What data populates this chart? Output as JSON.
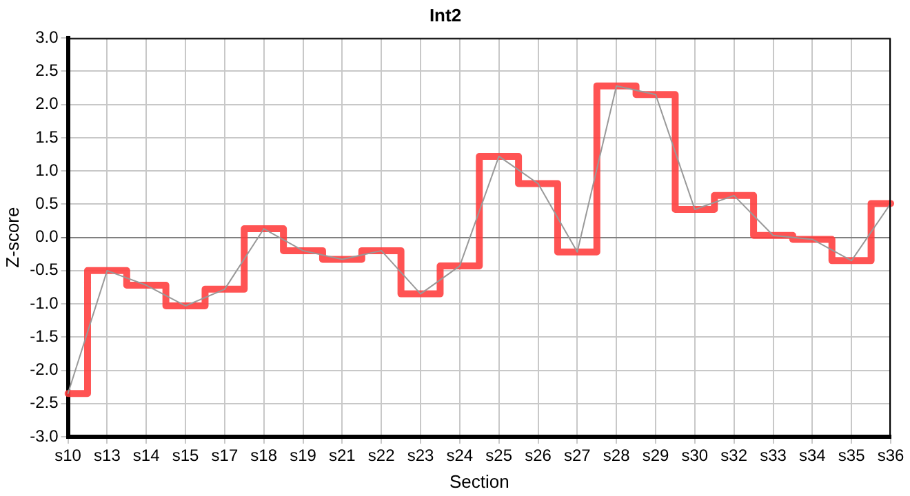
{
  "chart_data": {
    "type": "step",
    "title": "Int2",
    "xlabel": "Section",
    "ylabel": "Z-score",
    "categories": [
      "s10",
      "s13",
      "s14",
      "s15",
      "s17",
      "s18",
      "s19",
      "s21",
      "s22",
      "s23",
      "s24",
      "s25",
      "s26",
      "s27",
      "s28",
      "s29",
      "s30",
      "s32",
      "s33",
      "s34",
      "s35",
      "s36"
    ],
    "series": [
      {
        "type": "step",
        "color": "#ff3b3b",
        "values": [
          -2.35,
          -0.5,
          -0.72,
          -1.03,
          -0.78,
          0.13,
          -0.2,
          -0.33,
          -0.2,
          -0.85,
          -0.43,
          1.22,
          0.81,
          -0.22,
          2.28,
          2.15,
          0.42,
          0.63,
          0.03,
          -0.03,
          -0.35,
          0.51
        ]
      },
      {
        "type": "line",
        "color": "#999999",
        "values": [
          -2.35,
          -0.5,
          -0.72,
          -1.03,
          -0.78,
          0.13,
          -0.2,
          -0.33,
          -0.2,
          -0.85,
          -0.43,
          1.22,
          0.81,
          -0.22,
          2.28,
          2.15,
          0.42,
          0.63,
          0.03,
          -0.03,
          -0.35,
          0.51
        ]
      }
    ],
    "ylim": [
      -3,
      3
    ],
    "yticks": [
      {
        "value": -3,
        "label": "-3.0"
      },
      {
        "value": -2.5,
        "label": "-2.5"
      },
      {
        "value": -2,
        "label": "-2.0"
      },
      {
        "value": -1.5,
        "label": "-1.5"
      },
      {
        "value": -1,
        "label": "-1.0"
      },
      {
        "value": -0.5,
        "label": "-0.5"
      },
      {
        "value": 0,
        "label": "0.0"
      },
      {
        "value": 0.5,
        "label": "0.5"
      },
      {
        "value": 1,
        "label": "1.0"
      },
      {
        "value": 1.5,
        "label": "1.5"
      },
      {
        "value": 2,
        "label": "2.0"
      },
      {
        "value": 2.5,
        "label": "2.5"
      },
      {
        "value": 3,
        "label": "3.0"
      }
    ],
    "grid": true,
    "legend": false,
    "marker": "none"
  }
}
